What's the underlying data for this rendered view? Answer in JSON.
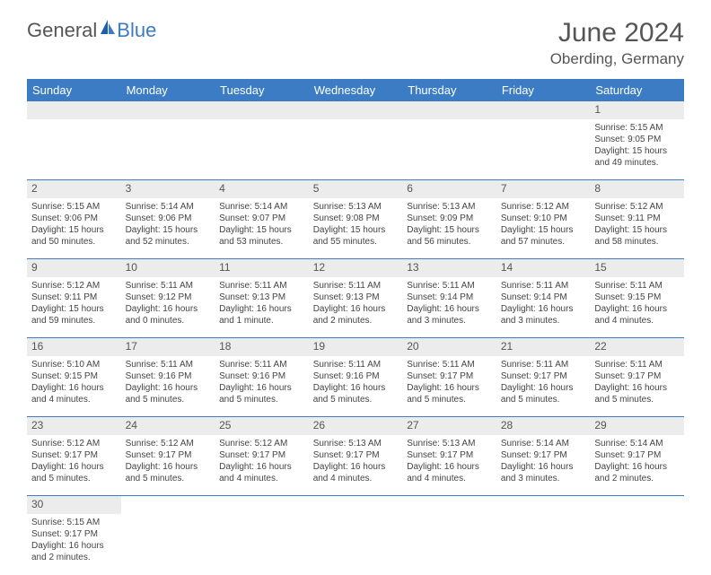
{
  "logo": {
    "text1": "General",
    "text2": "Blue"
  },
  "title": "June 2024",
  "location": "Oberding, Germany",
  "weekdays": [
    "Sunday",
    "Monday",
    "Tuesday",
    "Wednesday",
    "Thursday",
    "Friday",
    "Saturday"
  ],
  "colors": {
    "header_bg": "#3b7cc4",
    "header_text": "#ffffff",
    "daynum_bg": "#ececec",
    "border": "#3b7cc4",
    "text": "#444444",
    "title_text": "#555555"
  },
  "weeks": [
    [
      null,
      null,
      null,
      null,
      null,
      null,
      {
        "n": "1",
        "sr": "Sunrise: 5:15 AM",
        "ss": "Sunset: 9:05 PM",
        "d1": "Daylight: 15 hours",
        "d2": "and 49 minutes."
      }
    ],
    [
      {
        "n": "2",
        "sr": "Sunrise: 5:15 AM",
        "ss": "Sunset: 9:06 PM",
        "d1": "Daylight: 15 hours",
        "d2": "and 50 minutes."
      },
      {
        "n": "3",
        "sr": "Sunrise: 5:14 AM",
        "ss": "Sunset: 9:06 PM",
        "d1": "Daylight: 15 hours",
        "d2": "and 52 minutes."
      },
      {
        "n": "4",
        "sr": "Sunrise: 5:14 AM",
        "ss": "Sunset: 9:07 PM",
        "d1": "Daylight: 15 hours",
        "d2": "and 53 minutes."
      },
      {
        "n": "5",
        "sr": "Sunrise: 5:13 AM",
        "ss": "Sunset: 9:08 PM",
        "d1": "Daylight: 15 hours",
        "d2": "and 55 minutes."
      },
      {
        "n": "6",
        "sr": "Sunrise: 5:13 AM",
        "ss": "Sunset: 9:09 PM",
        "d1": "Daylight: 15 hours",
        "d2": "and 56 minutes."
      },
      {
        "n": "7",
        "sr": "Sunrise: 5:12 AM",
        "ss": "Sunset: 9:10 PM",
        "d1": "Daylight: 15 hours",
        "d2": "and 57 minutes."
      },
      {
        "n": "8",
        "sr": "Sunrise: 5:12 AM",
        "ss": "Sunset: 9:11 PM",
        "d1": "Daylight: 15 hours",
        "d2": "and 58 minutes."
      }
    ],
    [
      {
        "n": "9",
        "sr": "Sunrise: 5:12 AM",
        "ss": "Sunset: 9:11 PM",
        "d1": "Daylight: 15 hours",
        "d2": "and 59 minutes."
      },
      {
        "n": "10",
        "sr": "Sunrise: 5:11 AM",
        "ss": "Sunset: 9:12 PM",
        "d1": "Daylight: 16 hours",
        "d2": "and 0 minutes."
      },
      {
        "n": "11",
        "sr": "Sunrise: 5:11 AM",
        "ss": "Sunset: 9:13 PM",
        "d1": "Daylight: 16 hours",
        "d2": "and 1 minute."
      },
      {
        "n": "12",
        "sr": "Sunrise: 5:11 AM",
        "ss": "Sunset: 9:13 PM",
        "d1": "Daylight: 16 hours",
        "d2": "and 2 minutes."
      },
      {
        "n": "13",
        "sr": "Sunrise: 5:11 AM",
        "ss": "Sunset: 9:14 PM",
        "d1": "Daylight: 16 hours",
        "d2": "and 3 minutes."
      },
      {
        "n": "14",
        "sr": "Sunrise: 5:11 AM",
        "ss": "Sunset: 9:14 PM",
        "d1": "Daylight: 16 hours",
        "d2": "and 3 minutes."
      },
      {
        "n": "15",
        "sr": "Sunrise: 5:11 AM",
        "ss": "Sunset: 9:15 PM",
        "d1": "Daylight: 16 hours",
        "d2": "and 4 minutes."
      }
    ],
    [
      {
        "n": "16",
        "sr": "Sunrise: 5:10 AM",
        "ss": "Sunset: 9:15 PM",
        "d1": "Daylight: 16 hours",
        "d2": "and 4 minutes."
      },
      {
        "n": "17",
        "sr": "Sunrise: 5:11 AM",
        "ss": "Sunset: 9:16 PM",
        "d1": "Daylight: 16 hours",
        "d2": "and 5 minutes."
      },
      {
        "n": "18",
        "sr": "Sunrise: 5:11 AM",
        "ss": "Sunset: 9:16 PM",
        "d1": "Daylight: 16 hours",
        "d2": "and 5 minutes."
      },
      {
        "n": "19",
        "sr": "Sunrise: 5:11 AM",
        "ss": "Sunset: 9:16 PM",
        "d1": "Daylight: 16 hours",
        "d2": "and 5 minutes."
      },
      {
        "n": "20",
        "sr": "Sunrise: 5:11 AM",
        "ss": "Sunset: 9:17 PM",
        "d1": "Daylight: 16 hours",
        "d2": "and 5 minutes."
      },
      {
        "n": "21",
        "sr": "Sunrise: 5:11 AM",
        "ss": "Sunset: 9:17 PM",
        "d1": "Daylight: 16 hours",
        "d2": "and 5 minutes."
      },
      {
        "n": "22",
        "sr": "Sunrise: 5:11 AM",
        "ss": "Sunset: 9:17 PM",
        "d1": "Daylight: 16 hours",
        "d2": "and 5 minutes."
      }
    ],
    [
      {
        "n": "23",
        "sr": "Sunrise: 5:12 AM",
        "ss": "Sunset: 9:17 PM",
        "d1": "Daylight: 16 hours",
        "d2": "and 5 minutes."
      },
      {
        "n": "24",
        "sr": "Sunrise: 5:12 AM",
        "ss": "Sunset: 9:17 PM",
        "d1": "Daylight: 16 hours",
        "d2": "and 5 minutes."
      },
      {
        "n": "25",
        "sr": "Sunrise: 5:12 AM",
        "ss": "Sunset: 9:17 PM",
        "d1": "Daylight: 16 hours",
        "d2": "and 4 minutes."
      },
      {
        "n": "26",
        "sr": "Sunrise: 5:13 AM",
        "ss": "Sunset: 9:17 PM",
        "d1": "Daylight: 16 hours",
        "d2": "and 4 minutes."
      },
      {
        "n": "27",
        "sr": "Sunrise: 5:13 AM",
        "ss": "Sunset: 9:17 PM",
        "d1": "Daylight: 16 hours",
        "d2": "and 4 minutes."
      },
      {
        "n": "28",
        "sr": "Sunrise: 5:14 AM",
        "ss": "Sunset: 9:17 PM",
        "d1": "Daylight: 16 hours",
        "d2": "and 3 minutes."
      },
      {
        "n": "29",
        "sr": "Sunrise: 5:14 AM",
        "ss": "Sunset: 9:17 PM",
        "d1": "Daylight: 16 hours",
        "d2": "and 2 minutes."
      }
    ],
    [
      {
        "n": "30",
        "sr": "Sunrise: 5:15 AM",
        "ss": "Sunset: 9:17 PM",
        "d1": "Daylight: 16 hours",
        "d2": "and 2 minutes."
      },
      null,
      null,
      null,
      null,
      null,
      null
    ]
  ]
}
